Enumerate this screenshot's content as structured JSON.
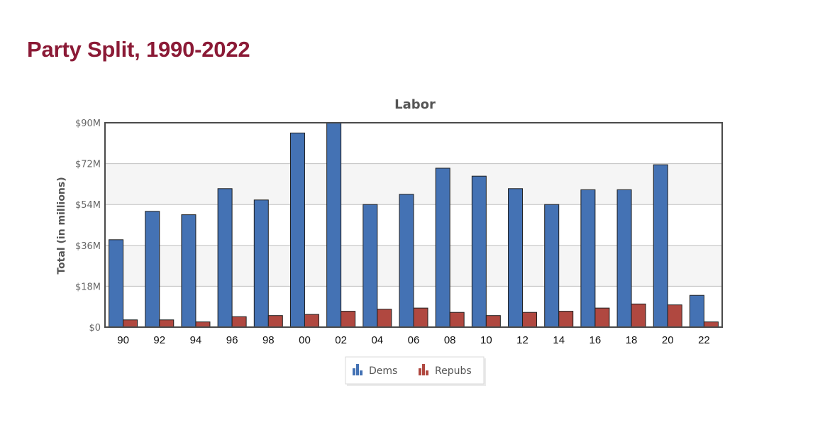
{
  "page": {
    "title": "Party Split, 1990-2022"
  },
  "chart_data": {
    "type": "bar",
    "title": "Labor",
    "xlabel": "",
    "ylabel": "Total (in millions)",
    "categories": [
      "90",
      "92",
      "94",
      "96",
      "98",
      "00",
      "02",
      "04",
      "06",
      "08",
      "10",
      "12",
      "14",
      "16",
      "18",
      "20",
      "22"
    ],
    "y_tick_labels": [
      "$0",
      "$18M",
      "$36M",
      "$54M",
      "$72M",
      "$90M"
    ],
    "ylim": [
      0,
      90
    ],
    "grid": true,
    "legend_position": "bottom-center",
    "series": [
      {
        "name": "Dems",
        "color": "#4472b4",
        "values": [
          38.5,
          51,
          49.5,
          61,
          56,
          85.5,
          90,
          54,
          58.5,
          70,
          66.5,
          61,
          54,
          60.5,
          60.5,
          71.5,
          14
        ]
      },
      {
        "name": "Repubs",
        "color": "#b04840",
        "values": [
          3.2,
          3.2,
          2.3,
          4.6,
          5.1,
          5.6,
          7,
          7.9,
          8.4,
          6.5,
          5.1,
          6.5,
          7,
          8.4,
          10.2,
          9.8,
          2.3
        ]
      }
    ]
  }
}
